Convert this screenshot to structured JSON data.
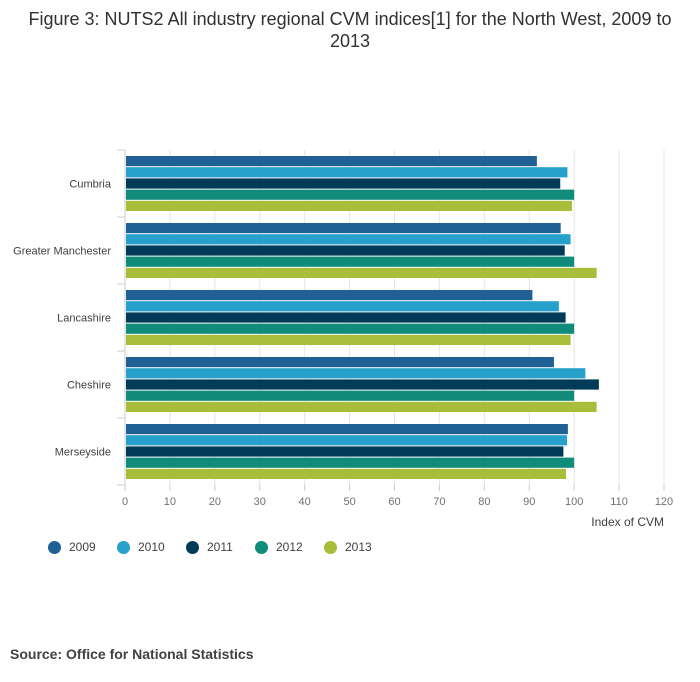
{
  "title": "Figure 3: NUTS2 All industry regional CVM indices[1] for the North West, 2009 to 2013",
  "source": "Source: Office for National Statistics",
  "chart_data": {
    "type": "bar",
    "orientation": "horizontal",
    "categories": [
      "Cumbria",
      "Greater Manchester",
      "Lancashire",
      "Cheshire",
      "Merseyside"
    ],
    "series": [
      {
        "name": "2009",
        "color": "#206095",
        "values": [
          91.7,
          97.0,
          90.7,
          95.5,
          98.6
        ]
      },
      {
        "name": "2010",
        "color": "#27a0cc",
        "values": [
          98.5,
          99.2,
          96.6,
          102.5,
          98.4
        ]
      },
      {
        "name": "2011",
        "color": "#003c57",
        "values": [
          96.9,
          97.9,
          98.1,
          105.5,
          97.6
        ]
      },
      {
        "name": "2012",
        "color": "#118c7b",
        "values": [
          100,
          100,
          100,
          100,
          100
        ]
      },
      {
        "name": "2013",
        "color": "#a8bd3a",
        "values": [
          99.5,
          105.0,
          99.2,
          105.0,
          98.2
        ]
      }
    ],
    "xlabel": "Index of CVM",
    "ylabel": "",
    "xlim": [
      0,
      120
    ],
    "ticks": [
      "0",
      "10",
      "20",
      "30",
      "40",
      "50",
      "60",
      "70",
      "80",
      "90",
      "100",
      "110",
      "120"
    ],
    "grid": true,
    "legend": "bottom-left"
  }
}
